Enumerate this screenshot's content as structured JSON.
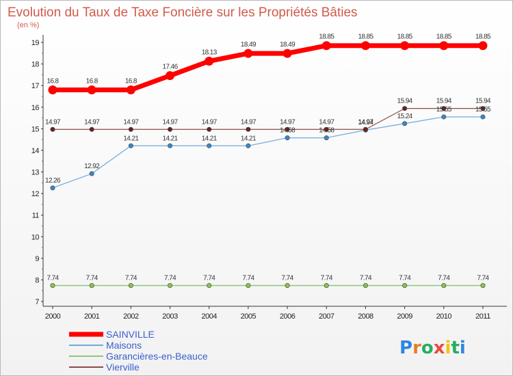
{
  "chart_data": {
    "type": "line",
    "title": "Evolution du Taux de Taxe Foncière sur les Propriétés Bâties",
    "subtitle": "(en %)",
    "x": [
      "2000",
      "2001",
      "2002",
      "2003",
      "2004",
      "2005",
      "2006",
      "2007",
      "2008",
      "2009",
      "2010",
      "2011"
    ],
    "yticks": [
      "7",
      "8",
      "9",
      "10",
      "11",
      "12",
      "13",
      "14",
      "15",
      "16",
      "17",
      "18",
      "19"
    ],
    "ylim": [
      7,
      19
    ],
    "grid": false,
    "legend_position": "bottom-left",
    "series": [
      {
        "name": "SAINVILLE",
        "color": "#ff0000",
        "values": [
          16.8,
          16.8,
          16.8,
          17.46,
          18.13,
          18.49,
          18.49,
          18.85,
          18.85,
          18.85,
          18.85,
          18.85
        ],
        "labels": [
          "16.8",
          "16.8",
          "16.8",
          "17.46",
          "18.13",
          "18.49",
          "18.49",
          "18.85",
          "18.85",
          "18.85",
          "18.85",
          "18.85"
        ]
      },
      {
        "name": "Maisons",
        "color": "#6fa8dc",
        "values": [
          12.26,
          12.92,
          14.21,
          14.21,
          14.21,
          14.21,
          14.58,
          14.58,
          14.94,
          15.24,
          15.55,
          15.55
        ],
        "labels": [
          "12.26",
          "12.92",
          "14.21",
          "14.21",
          "14.21",
          "14.21",
          "14.58",
          "14.58",
          "14.94",
          "15.24",
          "15.55",
          "15.55"
        ]
      },
      {
        "name": "Garancières-en-Beauce",
        "color": "#93c47d",
        "values": [
          7.74,
          7.74,
          7.74,
          7.74,
          7.74,
          7.74,
          7.74,
          7.74,
          7.74,
          7.74,
          7.74,
          7.74
        ],
        "labels": [
          "7.74",
          "7.74",
          "7.74",
          "7.74",
          "7.74",
          "7.74",
          "7.74",
          "7.74",
          "7.74",
          "7.74",
          "7.74",
          "7.74"
        ]
      },
      {
        "name": "Vierville",
        "color": "#8b4a4a",
        "values": [
          14.97,
          14.97,
          14.97,
          14.97,
          14.97,
          14.97,
          14.97,
          14.97,
          14.97,
          15.94,
          15.94,
          15.94
        ],
        "labels": [
          "14.97",
          "14.97",
          "14.97",
          "14.97",
          "14.97",
          "14.97",
          "14.97",
          "14.97",
          "14.97",
          "15.94",
          "15.94",
          "15.94"
        ]
      }
    ]
  },
  "logo": {
    "letters": [
      "P",
      "r",
      "o",
      "x",
      "i",
      "t",
      "i"
    ],
    "colors": [
      "#2e86de",
      "#e67e22",
      "#27ae60",
      "#e74c3c",
      "#f1c40f",
      "#27ae60",
      "#2e86de"
    ]
  }
}
